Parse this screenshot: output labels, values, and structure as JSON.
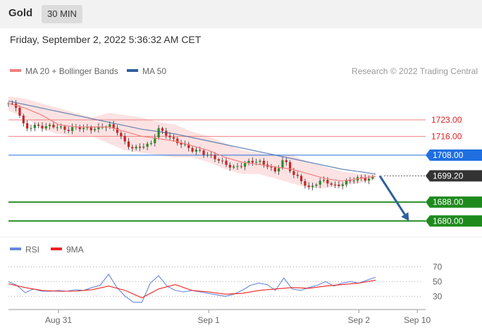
{
  "header": {
    "title": "Gold",
    "interval": "30 MIN"
  },
  "date_line": "Friday, September 2, 2022 5:36:32 AM CET",
  "credit": "Research © 2022 Trading Central",
  "colors": {
    "ma20": "#f08080",
    "ma50": "#3060a0",
    "bollinger_fill": "#fbd8d8",
    "candle_up": "#2a8a2a",
    "candle_down": "#cc2222",
    "support": "#1e8a1e",
    "resistance": "#f08080",
    "pivot": "#1f6fe0",
    "last": "#333333",
    "arrow": "#2e5f9e",
    "rsi": "#6688dd",
    "rsi_ma": "#ee2222"
  },
  "chart_data": [
    {
      "type": "candlestick",
      "legend": [
        {
          "label": "MA 20 + Bollinger Bands",
          "color": "#f08080"
        },
        {
          "label": "MA 50",
          "color": "#3060a0"
        }
      ],
      "ylim": [
        1675,
        1738
      ],
      "x_ticks": [
        {
          "label": "Aug 31",
          "t": 12
        },
        {
          "label": "Sep 1",
          "t": 48
        },
        {
          "label": "Sep 2",
          "t": 84
        },
        {
          "label": "Sep 10",
          "t": 98
        }
      ],
      "close_path": [
        [
          0,
          1730
        ],
        [
          2,
          1728
        ],
        [
          4,
          1719
        ],
        [
          6,
          1721
        ],
        [
          8,
          1720
        ],
        [
          10,
          1720
        ],
        [
          12,
          1720
        ],
        [
          14,
          1719
        ],
        [
          16,
          1720
        ],
        [
          18,
          1719
        ],
        [
          20,
          1719
        ],
        [
          22,
          1720
        ],
        [
          24,
          1721
        ],
        [
          26,
          1718
        ],
        [
          28,
          1713
        ],
        [
          30,
          1711
        ],
        [
          32,
          1712
        ],
        [
          34,
          1712
        ],
        [
          36,
          1719
        ],
        [
          38,
          1717
        ],
        [
          40,
          1714
        ],
        [
          42,
          1712
        ],
        [
          44,
          1710
        ],
        [
          46,
          1710
        ],
        [
          48,
          1708
        ],
        [
          50,
          1706
        ],
        [
          52,
          1704
        ],
        [
          54,
          1703
        ],
        [
          56,
          1704
        ],
        [
          58,
          1705
        ],
        [
          60,
          1705
        ],
        [
          62,
          1704
        ],
        [
          64,
          1701
        ],
        [
          66,
          1706
        ],
        [
          68,
          1700
        ],
        [
          70,
          1698
        ],
        [
          72,
          1694
        ],
        [
          74,
          1696
        ],
        [
          76,
          1697
        ],
        [
          78,
          1695
        ],
        [
          80,
          1696
        ],
        [
          82,
          1697
        ],
        [
          84,
          1698
        ],
        [
          86,
          1698
        ],
        [
          88,
          1699
        ]
      ],
      "ma20": [
        [
          0,
          1730
        ],
        [
          4,
          1728
        ],
        [
          8,
          1725
        ],
        [
          12,
          1721
        ],
        [
          16,
          1720
        ],
        [
          20,
          1720
        ],
        [
          24,
          1720
        ],
        [
          28,
          1718
        ],
        [
          32,
          1716
        ],
        [
          36,
          1715
        ],
        [
          40,
          1714
        ],
        [
          44,
          1712
        ],
        [
          48,
          1710
        ],
        [
          52,
          1707
        ],
        [
          56,
          1705
        ],
        [
          60,
          1704
        ],
        [
          64,
          1703
        ],
        [
          68,
          1702
        ],
        [
          72,
          1700
        ],
        [
          76,
          1698
        ],
        [
          80,
          1697
        ],
        [
          84,
          1698
        ],
        [
          88,
          1699
        ]
      ],
      "bollinger_upper": [
        [
          0,
          1733
        ],
        [
          4,
          1732
        ],
        [
          8,
          1730
        ],
        [
          12,
          1728
        ],
        [
          16,
          1726
        ],
        [
          20,
          1724
        ],
        [
          24,
          1726
        ],
        [
          28,
          1725
        ],
        [
          32,
          1724
        ],
        [
          36,
          1722
        ],
        [
          40,
          1721
        ],
        [
          44,
          1718
        ],
        [
          48,
          1716
        ],
        [
          52,
          1713
        ],
        [
          56,
          1710
        ],
        [
          60,
          1709
        ],
        [
          64,
          1708
        ],
        [
          68,
          1708
        ],
        [
          72,
          1705
        ],
        [
          76,
          1703
        ],
        [
          80,
          1701
        ],
        [
          84,
          1700
        ],
        [
          88,
          1700
        ]
      ],
      "bollinger_lower": [
        [
          0,
          1727
        ],
        [
          4,
          1724
        ],
        [
          8,
          1719
        ],
        [
          12,
          1717
        ],
        [
          16,
          1716
        ],
        [
          20,
          1716
        ],
        [
          24,
          1713
        ],
        [
          28,
          1710
        ],
        [
          32,
          1709
        ],
        [
          36,
          1708
        ],
        [
          40,
          1707
        ],
        [
          44,
          1707
        ],
        [
          48,
          1705
        ],
        [
          52,
          1702
        ],
        [
          56,
          1700
        ],
        [
          60,
          1700
        ],
        [
          64,
          1698
        ],
        [
          68,
          1696
        ],
        [
          72,
          1694
        ],
        [
          76,
          1694
        ],
        [
          80,
          1695
        ],
        [
          84,
          1696
        ],
        [
          88,
          1698
        ]
      ],
      "ma50": [
        [
          0,
          1731
        ],
        [
          8,
          1728
        ],
        [
          16,
          1725
        ],
        [
          24,
          1722
        ],
        [
          32,
          1719
        ],
        [
          40,
          1717
        ],
        [
          48,
          1714
        ],
        [
          56,
          1711
        ],
        [
          64,
          1708
        ],
        [
          72,
          1705
        ],
        [
          80,
          1702
        ],
        [
          88,
          1700
        ]
      ],
      "levels": [
        {
          "label": "1723.00",
          "value": 1723,
          "kind": "resistance"
        },
        {
          "label": "1716.00",
          "value": 1716,
          "kind": "resistance"
        },
        {
          "label": "1708.00",
          "value": 1708,
          "kind": "pivot"
        },
        {
          "label": "1699.20",
          "value": 1699.2,
          "kind": "last"
        },
        {
          "label": "1688.00",
          "value": 1688,
          "kind": "support"
        },
        {
          "label": "1680.00",
          "value": 1680,
          "kind": "support"
        }
      ],
      "forecast_arrow": {
        "from": [
          89,
          1699.2
        ],
        "to": [
          96,
          1680
        ]
      }
    },
    {
      "type": "line",
      "legend": [
        {
          "label": "RSI",
          "color": "#6688dd"
        },
        {
          "label": "9MA",
          "color": "#ee2222"
        }
      ],
      "ylim": [
        15,
        80
      ],
      "y_ticks": [
        {
          "label": "70",
          "value": 70
        },
        {
          "label": "50",
          "value": 50
        },
        {
          "label": "30",
          "value": 30
        }
      ],
      "rsi": [
        [
          0,
          50
        ],
        [
          2,
          45
        ],
        [
          4,
          35
        ],
        [
          6,
          40
        ],
        [
          8,
          37
        ],
        [
          10,
          37
        ],
        [
          12,
          38
        ],
        [
          14,
          37
        ],
        [
          16,
          39
        ],
        [
          18,
          38
        ],
        [
          20,
          42
        ],
        [
          22,
          45
        ],
        [
          24,
          60
        ],
        [
          26,
          42
        ],
        [
          28,
          30
        ],
        [
          30,
          22
        ],
        [
          32,
          22
        ],
        [
          34,
          48
        ],
        [
          36,
          58
        ],
        [
          38,
          44
        ],
        [
          40,
          38
        ],
        [
          42,
          36
        ],
        [
          44,
          38
        ],
        [
          46,
          36
        ],
        [
          48,
          34
        ],
        [
          50,
          32
        ],
        [
          52,
          30
        ],
        [
          54,
          33
        ],
        [
          56,
          38
        ],
        [
          58,
          45
        ],
        [
          60,
          48
        ],
        [
          62,
          46
        ],
        [
          64,
          38
        ],
        [
          66,
          55
        ],
        [
          68,
          40
        ],
        [
          70,
          38
        ],
        [
          72,
          42
        ],
        [
          74,
          45
        ],
        [
          76,
          50
        ],
        [
          78,
          44
        ],
        [
          80,
          48
        ],
        [
          82,
          50
        ],
        [
          84,
          48
        ],
        [
          86,
          52
        ],
        [
          88,
          56
        ]
      ],
      "rsi_ma": [
        [
          0,
          47
        ],
        [
          4,
          42
        ],
        [
          8,
          38
        ],
        [
          12,
          37
        ],
        [
          16,
          37
        ],
        [
          20,
          39
        ],
        [
          24,
          44
        ],
        [
          28,
          38
        ],
        [
          32,
          28
        ],
        [
          36,
          40
        ],
        [
          40,
          46
        ],
        [
          44,
          38
        ],
        [
          48,
          36
        ],
        [
          52,
          33
        ],
        [
          56,
          34
        ],
        [
          60,
          38
        ],
        [
          64,
          40
        ],
        [
          68,
          42
        ],
        [
          72,
          41
        ],
        [
          76,
          44
        ],
        [
          80,
          46
        ],
        [
          84,
          48
        ],
        [
          88,
          52
        ]
      ]
    }
  ]
}
